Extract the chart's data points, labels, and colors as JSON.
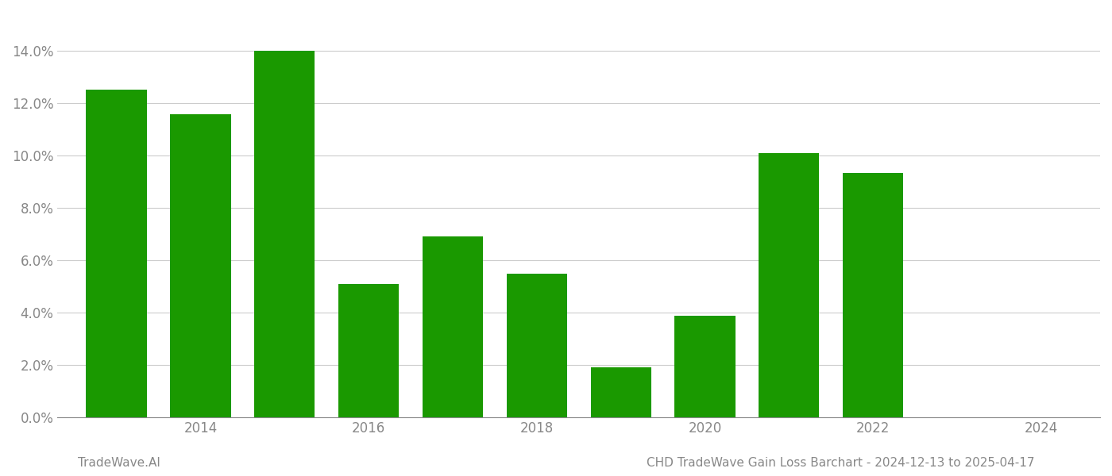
{
  "years": [
    2013,
    2014,
    2015,
    2016,
    2017,
    2018,
    2019,
    2020,
    2021,
    2022,
    2023
  ],
  "values": [
    0.1252,
    0.1158,
    0.14,
    0.051,
    0.0692,
    0.0548,
    0.019,
    0.0388,
    0.101,
    0.0935,
    0.0
  ],
  "bar_color": "#1a9900",
  "background_color": "#ffffff",
  "footer_left": "TradeWave.AI",
  "footer_right": "CHD TradeWave Gain Loss Barchart - 2024-12-13 to 2025-04-17",
  "ylim": [
    0,
    0.155
  ],
  "yticks": [
    0.0,
    0.02,
    0.04,
    0.06,
    0.08,
    0.1,
    0.12,
    0.14
  ],
  "xtick_labels": [
    "2014",
    "2016",
    "2018",
    "2020",
    "2022",
    "2024"
  ],
  "xtick_positions": [
    2014,
    2016,
    2018,
    2020,
    2022,
    2024
  ],
  "xlim": [
    2012.3,
    2024.7
  ],
  "grid_color": "#cccccc",
  "tick_color": "#888888",
  "footer_fontsize": 11,
  "bar_width": 0.72
}
